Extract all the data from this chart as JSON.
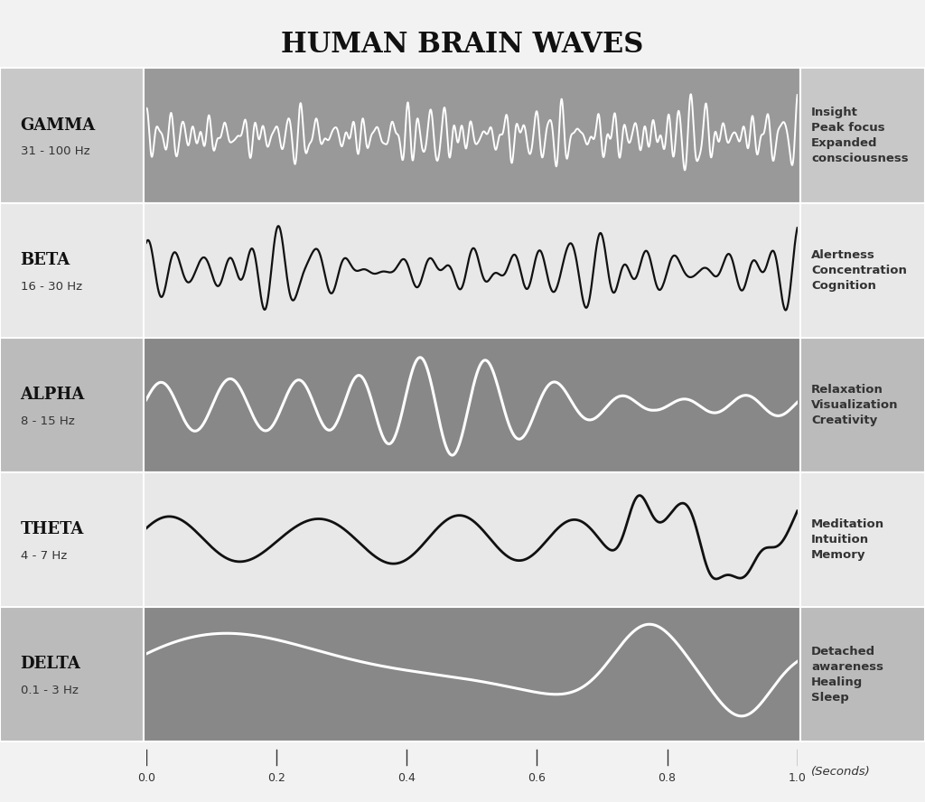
{
  "title": "HUMAN BRAIN WAVES",
  "title_fontsize": 22,
  "background_color": "#f2f2f2",
  "waves": [
    {
      "name": "GAMMA",
      "freq_label": "31 - 100 Hz",
      "amplitude": 0.7,
      "description": [
        "Insight",
        "Peak focus",
        "Expanded",
        "consciousness"
      ],
      "bg_color": "#999999",
      "label_bg": "#c8c8c8",
      "wave_color": "#ffffff",
      "line_width": 1.4,
      "wave_type": "gamma"
    },
    {
      "name": "BETA",
      "freq_label": "16 - 30 Hz",
      "amplitude": 0.75,
      "description": [
        "Alertness",
        "Concentration",
        "Cognition"
      ],
      "bg_color": "#e8e8e8",
      "label_bg": "#e8e8e8",
      "wave_color": "#111111",
      "line_width": 1.6,
      "wave_type": "beta"
    },
    {
      "name": "ALPHA",
      "freq_label": "8 - 15 Hz",
      "amplitude": 0.85,
      "description": [
        "Relaxation",
        "Visualization",
        "Creativity"
      ],
      "bg_color": "#888888",
      "label_bg": "#bbbbbb",
      "wave_color": "#ffffff",
      "line_width": 2.2,
      "wave_type": "alpha"
    },
    {
      "name": "THETA",
      "freq_label": "4 - 7 Hz",
      "amplitude": 0.75,
      "description": [
        "Meditation",
        "Intuition",
        "Memory"
      ],
      "bg_color": "#e8e8e8",
      "label_bg": "#e8e8e8",
      "wave_color": "#111111",
      "line_width": 2.0,
      "wave_type": "theta"
    },
    {
      "name": "DELTA",
      "freq_label": "0.1 - 3 Hz",
      "amplitude": 0.85,
      "description": [
        "Detached",
        "awareness",
        "Healing",
        "Sleep"
      ],
      "bg_color": "#888888",
      "label_bg": "#bbbbbb",
      "wave_color": "#ffffff",
      "line_width": 2.2,
      "wave_type": "delta"
    }
  ],
  "x_ticks": [
    0.0,
    0.2,
    0.4,
    0.6,
    0.8,
    1.0
  ],
  "x_label": "(Seconds)"
}
